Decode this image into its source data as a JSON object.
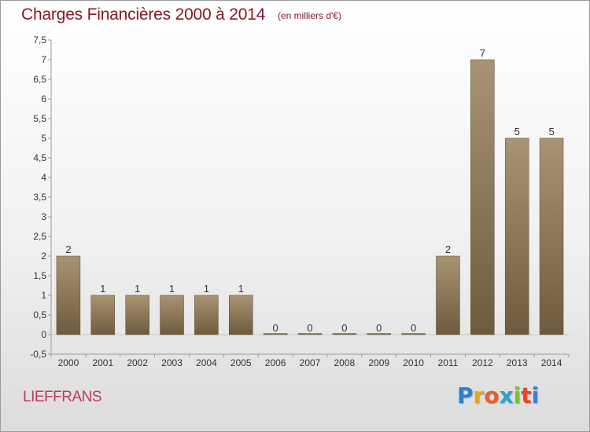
{
  "header": {
    "title": "Charges Financières 2000 à 2014",
    "unit_note": "(en milliers d'€)"
  },
  "commune": "LIEFFRANS",
  "logo": {
    "letters": [
      "P",
      "r",
      "o",
      "x",
      "i",
      "t",
      "i"
    ],
    "colors": [
      "#2a7fd1",
      "#e8a21a",
      "#e85b2a",
      "#2aa1d8",
      "#7bbf2a",
      "#e8432a",
      "#3a7fd1"
    ]
  },
  "colors": {
    "bar_light": "#a89474",
    "bar_dark": "#6e5b3d",
    "axis": "#9a9a9a",
    "grid": "#c8c8c8",
    "label": "#333333"
  },
  "chart_data": {
    "type": "bar",
    "categories": [
      "2000",
      "2001",
      "2002",
      "2003",
      "2004",
      "2005",
      "2006",
      "2007",
      "2008",
      "2009",
      "2010",
      "2011",
      "2012",
      "2013",
      "2014"
    ],
    "values": [
      2,
      1,
      1,
      1,
      1,
      1,
      0,
      0,
      0,
      0,
      0,
      2,
      7,
      5,
      5
    ],
    "data_labels": [
      "2",
      "1",
      "1",
      "1",
      "1",
      "1",
      "0",
      "0",
      "0",
      "0",
      "0",
      "2",
      "7",
      "5",
      "5"
    ],
    "title": "Charges Financières 2000 à 2014",
    "subtitle": "(en milliers d'€)",
    "xlabel": "",
    "ylabel": "",
    "ylim": [
      -0.5,
      7.5
    ],
    "yticks": [
      -0.5,
      0,
      0.5,
      1,
      1.5,
      2,
      2.5,
      3,
      3.5,
      4,
      4.5,
      5,
      5.5,
      6,
      6.5,
      7,
      7.5
    ],
    "ytick_labels": [
      "-0,5",
      "0",
      "0,5",
      "1",
      "1,5",
      "2",
      "2,5",
      "3",
      "3,5",
      "4",
      "4,5",
      "5",
      "5,5",
      "6",
      "6,5",
      "7",
      "7,5"
    ],
    "grid": false,
    "legend": "none"
  }
}
